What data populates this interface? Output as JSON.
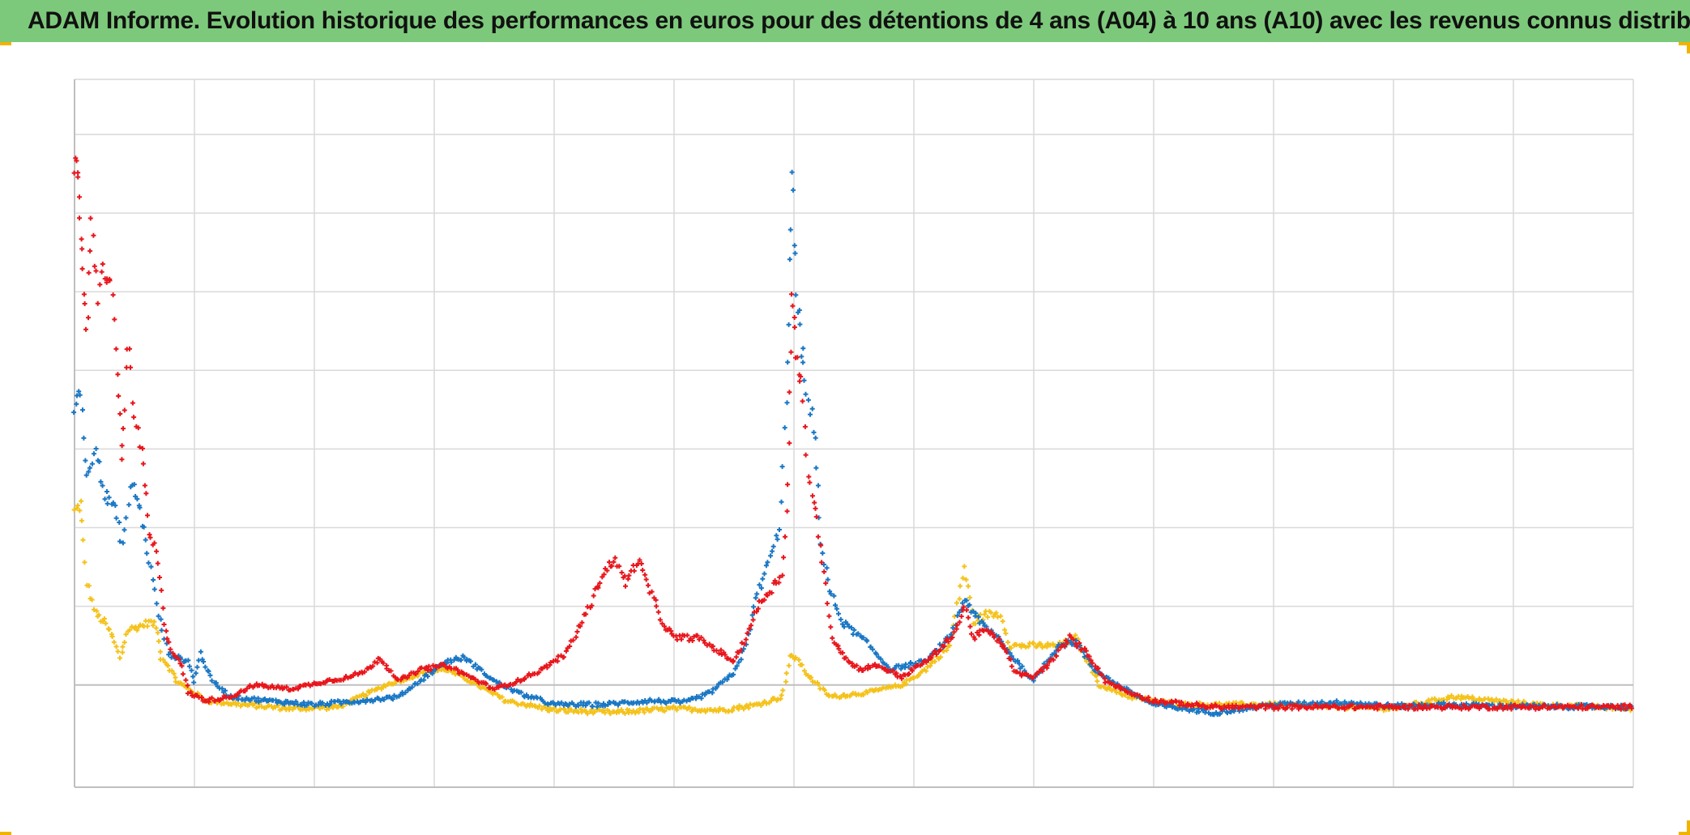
{
  "title": "ADAM Informe. Evolution historique des performances en euros pour des détentions de 4 ans (A04) à 10 ans (A10) avec les revenus connus distribués",
  "colors": {
    "title_bar": "#7dc97b",
    "grid": "#d9d9d9",
    "axis": "#bfbfbf",
    "corner_marks": "#f0b400"
  },
  "chart_data": {
    "type": "scatter",
    "marker": "plus",
    "grid": true,
    "xlim": [
      0,
      13
    ],
    "ylim": [
      -1.3,
      7.7
    ],
    "baseline_y": 0,
    "x_gridlines": 13,
    "y_gridline_values": [
      -1.3,
      0,
      1,
      2,
      3,
      4,
      5,
      6,
      7,
      7.7
    ],
    "series": [
      {
        "color": "#f4c21a",
        "points": [
          [
            0.0,
            2.2
          ],
          [
            0.05,
            2.3
          ],
          [
            0.1,
            1.3
          ],
          [
            0.18,
            0.9
          ],
          [
            0.25,
            0.8
          ],
          [
            0.32,
            0.6
          ],
          [
            0.38,
            0.35
          ],
          [
            0.45,
            0.7
          ],
          [
            0.55,
            0.75
          ],
          [
            0.62,
            0.8
          ],
          [
            0.68,
            0.75
          ],
          [
            0.72,
            0.35
          ],
          [
            0.78,
            0.25
          ],
          [
            0.85,
            0.05
          ],
          [
            0.95,
            -0.05
          ],
          [
            1.1,
            -0.2
          ],
          [
            1.4,
            -0.25
          ],
          [
            1.8,
            -0.3
          ],
          [
            2.2,
            -0.28
          ],
          [
            2.6,
            0.0
          ],
          [
            2.9,
            0.15
          ],
          [
            3.1,
            0.2
          ],
          [
            3.3,
            0.05
          ],
          [
            3.6,
            -0.2
          ],
          [
            4.0,
            -0.32
          ],
          [
            4.5,
            -0.35
          ],
          [
            5.0,
            -0.3
          ],
          [
            5.4,
            -0.32
          ],
          [
            5.7,
            -0.25
          ],
          [
            5.9,
            -0.15
          ],
          [
            5.97,
            0.35
          ],
          [
            6.02,
            0.35
          ],
          [
            6.1,
            0.15
          ],
          [
            6.3,
            -0.15
          ],
          [
            6.6,
            -0.1
          ],
          [
            6.9,
            0.0
          ],
          [
            7.1,
            0.2
          ],
          [
            7.3,
            0.5
          ],
          [
            7.42,
            1.5
          ],
          [
            7.5,
            0.8
          ],
          [
            7.6,
            0.9
          ],
          [
            7.72,
            0.9
          ],
          [
            7.8,
            0.5
          ],
          [
            8.0,
            0.5
          ],
          [
            8.2,
            0.5
          ],
          [
            8.35,
            0.6
          ],
          [
            8.55,
            0.0
          ],
          [
            8.8,
            -0.15
          ],
          [
            9.2,
            -0.25
          ],
          [
            10.0,
            -0.25
          ],
          [
            11.0,
            -0.3
          ],
          [
            11.5,
            -0.15
          ],
          [
            12.2,
            -0.25
          ],
          [
            13.0,
            -0.3
          ]
        ]
      },
      {
        "color": "#1a77c4",
        "points": [
          [
            0.0,
            3.5
          ],
          [
            0.05,
            3.8
          ],
          [
            0.1,
            2.6
          ],
          [
            0.18,
            3.1
          ],
          [
            0.25,
            2.4
          ],
          [
            0.32,
            2.3
          ],
          [
            0.4,
            1.8
          ],
          [
            0.48,
            2.6
          ],
          [
            0.55,
            2.2
          ],
          [
            0.62,
            1.6
          ],
          [
            0.7,
            0.9
          ],
          [
            0.78,
            0.4
          ],
          [
            0.85,
            0.35
          ],
          [
            0.95,
            0.3
          ],
          [
            1.0,
            0.05
          ],
          [
            1.05,
            0.4
          ],
          [
            1.15,
            0.05
          ],
          [
            1.3,
            -0.15
          ],
          [
            1.6,
            -0.2
          ],
          [
            2.0,
            -0.25
          ],
          [
            2.4,
            -0.2
          ],
          [
            2.7,
            -0.15
          ],
          [
            3.1,
            0.3
          ],
          [
            3.25,
            0.35
          ],
          [
            3.5,
            0.05
          ],
          [
            3.7,
            -0.1
          ],
          [
            4.0,
            -0.25
          ],
          [
            4.4,
            -0.25
          ],
          [
            4.8,
            -0.2
          ],
          [
            5.1,
            -0.22
          ],
          [
            5.3,
            -0.1
          ],
          [
            5.5,
            0.15
          ],
          [
            5.6,
            0.5
          ],
          [
            5.68,
            1.1
          ],
          [
            5.8,
            1.6
          ],
          [
            5.88,
            2.0
          ],
          [
            5.95,
            4.0
          ],
          [
            5.98,
            6.5
          ],
          [
            6.02,
            5.0
          ],
          [
            6.06,
            4.3
          ],
          [
            6.1,
            3.7
          ],
          [
            6.18,
            3.2
          ],
          [
            6.22,
            1.8
          ],
          [
            6.3,
            1.2
          ],
          [
            6.4,
            0.8
          ],
          [
            6.6,
            0.55
          ],
          [
            6.8,
            0.2
          ],
          [
            7.1,
            0.3
          ],
          [
            7.3,
            0.6
          ],
          [
            7.42,
            1.1
          ],
          [
            7.55,
            0.8
          ],
          [
            7.7,
            0.6
          ],
          [
            7.8,
            0.4
          ],
          [
            8.0,
            0.05
          ],
          [
            8.2,
            0.5
          ],
          [
            8.35,
            0.55
          ],
          [
            8.5,
            0.2
          ],
          [
            8.7,
            0.0
          ],
          [
            9.0,
            -0.25
          ],
          [
            9.5,
            -0.35
          ],
          [
            10.0,
            -0.25
          ],
          [
            10.6,
            -0.22
          ],
          [
            11.0,
            -0.27
          ],
          [
            11.4,
            -0.25
          ],
          [
            12.0,
            -0.27
          ],
          [
            13.0,
            -0.28
          ]
        ]
      },
      {
        "color": "#e8161c",
        "points": [
          [
            0.0,
            6.6
          ],
          [
            0.03,
            6.4
          ],
          [
            0.06,
            5.6
          ],
          [
            0.1,
            4.4
          ],
          [
            0.14,
            5.8
          ],
          [
            0.2,
            5.0
          ],
          [
            0.25,
            5.3
          ],
          [
            0.3,
            5.1
          ],
          [
            0.36,
            4.0
          ],
          [
            0.4,
            2.8
          ],
          [
            0.44,
            4.4
          ],
          [
            0.5,
            3.4
          ],
          [
            0.58,
            2.8
          ],
          [
            0.62,
            1.9
          ],
          [
            0.68,
            1.7
          ],
          [
            0.75,
            0.8
          ],
          [
            0.8,
            0.45
          ],
          [
            0.88,
            0.3
          ],
          [
            0.95,
            -0.1
          ],
          [
            1.1,
            -0.2
          ],
          [
            1.3,
            -0.15
          ],
          [
            1.5,
            0.0
          ],
          [
            1.8,
            -0.05
          ],
          [
            2.1,
            0.05
          ],
          [
            2.3,
            0.1
          ],
          [
            2.45,
            0.2
          ],
          [
            2.55,
            0.35
          ],
          [
            2.7,
            0.05
          ],
          [
            2.9,
            0.2
          ],
          [
            3.1,
            0.25
          ],
          [
            3.3,
            0.1
          ],
          [
            3.5,
            -0.05
          ],
          [
            3.7,
            0.05
          ],
          [
            3.9,
            0.2
          ],
          [
            4.1,
            0.4
          ],
          [
            4.3,
            1.0
          ],
          [
            4.4,
            1.4
          ],
          [
            4.5,
            1.6
          ],
          [
            4.6,
            1.3
          ],
          [
            4.7,
            1.6
          ],
          [
            4.8,
            1.2
          ],
          [
            4.9,
            0.8
          ],
          [
            5.0,
            0.6
          ],
          [
            5.2,
            0.6
          ],
          [
            5.4,
            0.4
          ],
          [
            5.5,
            0.3
          ],
          [
            5.6,
            0.6
          ],
          [
            5.7,
            1.0
          ],
          [
            5.8,
            1.2
          ],
          [
            5.9,
            1.4
          ],
          [
            5.95,
            2.5
          ],
          [
            5.98,
            4.9
          ],
          [
            6.02,
            4.3
          ],
          [
            6.06,
            3.8
          ],
          [
            6.12,
            2.6
          ],
          [
            6.18,
            2.3
          ],
          [
            6.25,
            1.4
          ],
          [
            6.32,
            0.6
          ],
          [
            6.45,
            0.3
          ],
          [
            6.55,
            0.2
          ],
          [
            6.7,
            0.25
          ],
          [
            6.9,
            0.1
          ],
          [
            7.1,
            0.3
          ],
          [
            7.25,
            0.5
          ],
          [
            7.35,
            0.7
          ],
          [
            7.42,
            1.0
          ],
          [
            7.5,
            0.6
          ],
          [
            7.6,
            0.7
          ],
          [
            7.75,
            0.5
          ],
          [
            7.85,
            0.15
          ],
          [
            8.0,
            0.1
          ],
          [
            8.15,
            0.3
          ],
          [
            8.3,
            0.6
          ],
          [
            8.45,
            0.4
          ],
          [
            8.6,
            0.05
          ],
          [
            8.8,
            -0.1
          ],
          [
            9.0,
            -0.2
          ],
          [
            9.5,
            -0.28
          ],
          [
            10.0,
            -0.28
          ],
          [
            11.0,
            -0.28
          ],
          [
            12.0,
            -0.28
          ],
          [
            13.0,
            -0.28
          ]
        ]
      }
    ]
  }
}
